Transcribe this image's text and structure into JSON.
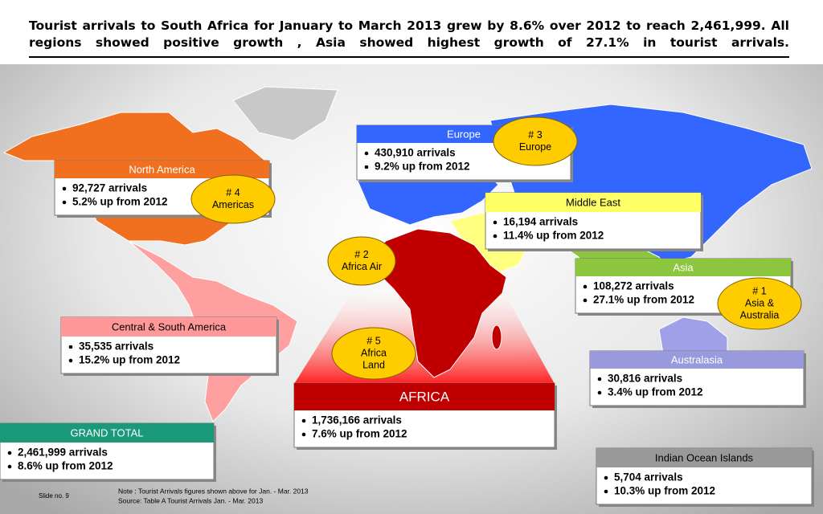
{
  "header": {
    "title": "Tourist arrivals to South Africa for January to March 2013 grew by 8.6% over 2012 to reach 2,461,999. All regions showed positive growth , Asia showed highest growth of 27.1% in tourist arrivals."
  },
  "regions": [
    {
      "name": "North America",
      "lines": [
        "92,727 arrivals",
        "5.2% up from 2012"
      ]
    },
    {
      "name": "Europe",
      "lines": [
        "430,910 arrivals",
        "9.2% up from 2012"
      ]
    },
    {
      "name": "Middle East",
      "lines": [
        "16,194 arrivals",
        "11.4% up from 2012"
      ]
    },
    {
      "name": "Asia",
      "lines": [
        "108,272 arrivals",
        "27.1% up from 2012"
      ]
    },
    {
      "name": "Central & South America",
      "lines": [
        "35,535 arrivals",
        "15.2% up from 2012"
      ]
    },
    {
      "name": "Australasia",
      "lines": [
        "30,816 arrivals",
        "3.4% up from 2012"
      ]
    },
    {
      "name": "AFRICA",
      "lines": [
        "1,736,166 arrivals",
        "7.6% up from 2012"
      ]
    },
    {
      "name": "Indian Ocean Islands",
      "lines": [
        "5,704 arrivals",
        "10.3% up from 2012"
      ]
    },
    {
      "name": "GRAND TOTAL",
      "lines": [
        "2,461,999 arrivals",
        "8.6% up from 2012"
      ]
    }
  ],
  "badges": [
    {
      "lines": [
        "# 3",
        "Europe"
      ]
    },
    {
      "lines": [
        "# 4",
        "Americas"
      ]
    },
    {
      "lines": [
        "# 2",
        "Africa Air"
      ]
    },
    {
      "lines": [
        "# 1",
        "Asia &",
        "Australia"
      ]
    },
    {
      "lines": [
        "# 5",
        "Africa",
        "Land"
      ]
    }
  ],
  "footer": {
    "slide": "Slide no. 9",
    "notes": [
      "Note : Tourist Arrivals figures shown above for Jan. - Mar. 2013",
      "Source:  Table A Tourist Arrivals Jan. - Mar. 2013"
    ]
  }
}
